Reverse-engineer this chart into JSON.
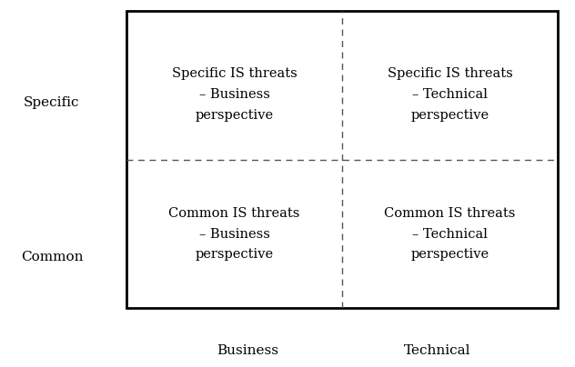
{
  "quadrant_texts": {
    "top_left": "Specific IS threats\n– Business\nperspective",
    "top_right": "Specific IS threats\n– Technical\nperspective",
    "bottom_left": "Common IS threats\n– Business\nperspective",
    "bottom_right": "Common IS threats\n– Technical\nperspective"
  },
  "y_axis_labels": {
    "top": "Specific",
    "bottom": "Common"
  },
  "x_axis_labels": {
    "left": "Business",
    "right": "Technical"
  },
  "box_color": "#000000",
  "text_color": "#000000",
  "background_color": "#ffffff",
  "dashed_line_color": "#555555",
  "font_size": 10.5,
  "axis_label_font_size": 11
}
